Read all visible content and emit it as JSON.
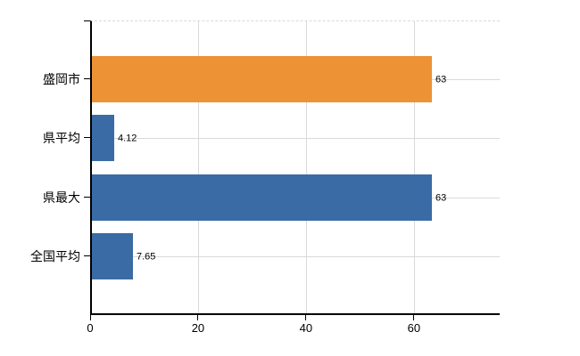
{
  "colors": {
    "background": "#ffffff",
    "axis": "#000000",
    "grid": "#d9d9d9",
    "text": "#000000",
    "bar_orange": "#ed9235",
    "bar_blue": "#3a6ba5"
  },
  "chart_data": {
    "type": "bar",
    "orientation": "horizontal",
    "title": "",
    "categories": [
      "盛岡市",
      "県平均",
      "県最大",
      "全国平均"
    ],
    "values": [
      63,
      4.12,
      63,
      7.65
    ],
    "value_labels": [
      "63",
      "4.12",
      "63",
      "7.65"
    ],
    "bar_colors": [
      "#ed9235",
      "#3a6ba5",
      "#3a6ba5",
      "#3a6ba5"
    ],
    "x_ticks": [
      0,
      20,
      40,
      60
    ],
    "x_tick_labels": [
      "0",
      "20",
      "40",
      "60"
    ],
    "xlim": [
      0,
      75.9
    ],
    "ylabel": "",
    "xlabel": "",
    "grid": true,
    "legend": false
  }
}
